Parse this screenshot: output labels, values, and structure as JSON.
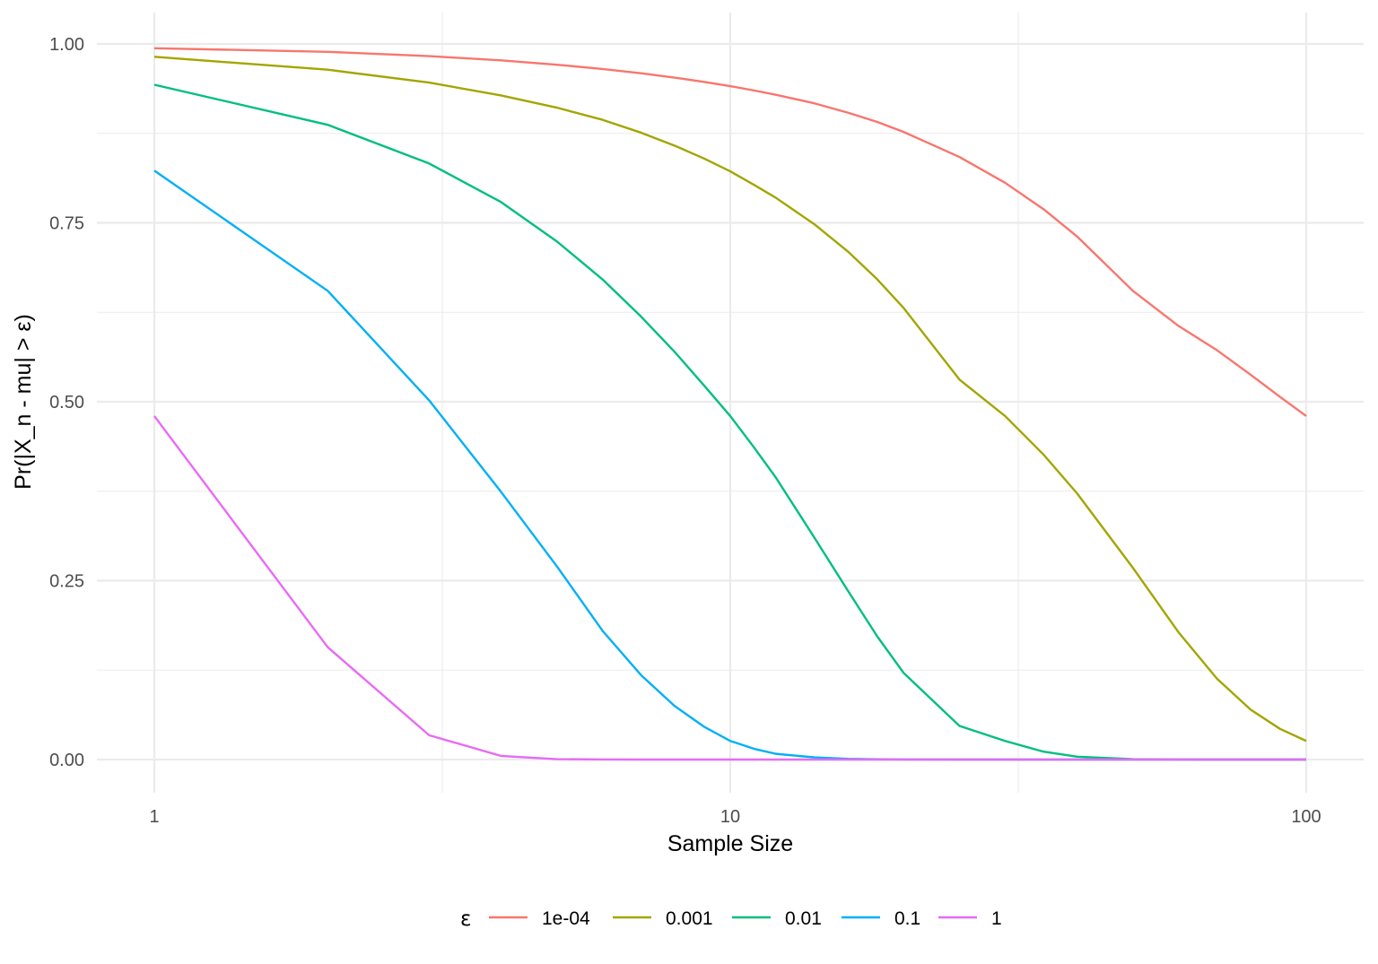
{
  "chart_data": {
    "type": "line",
    "title": "",
    "xlabel": "Sample Size",
    "ylabel": "Pr(|X_n - mu| > ε)",
    "x_scale": "log10",
    "xlim": [
      1,
      100
    ],
    "ylim": [
      0,
      1
    ],
    "x_ticks": [
      {
        "value": 1,
        "label": "1"
      },
      {
        "value": 10,
        "label": "10"
      },
      {
        "value": 100,
        "label": "100"
      }
    ],
    "y_ticks": [
      {
        "value": 0,
        "label": "0.00"
      },
      {
        "value": 0.25,
        "label": "0.25"
      },
      {
        "value": 0.5,
        "label": "0.50"
      },
      {
        "value": 0.75,
        "label": "0.75"
      },
      {
        "value": 1,
        "label": "1.00"
      }
    ],
    "grid": true,
    "legend": {
      "title": "ε",
      "position": "bottom"
    },
    "x": [
      1,
      2,
      3,
      4,
      5,
      6,
      7,
      8,
      9,
      10,
      11,
      12,
      14,
      16,
      18,
      20,
      25,
      30,
      35,
      40,
      50,
      60,
      70,
      80,
      90,
      100
    ],
    "series": [
      {
        "name": "1e-04",
        "color": "#F8766D",
        "values": [
          0.994,
          0.989,
          0.983,
          0.977,
          0.971,
          0.965,
          0.959,
          0.953,
          0.947,
          0.941,
          0.935,
          0.929,
          0.917,
          0.904,
          0.891,
          0.877,
          0.842,
          0.806,
          0.769,
          0.731,
          0.655,
          0.606,
          0.572,
          0.538,
          0.507,
          0.48
        ]
      },
      {
        "name": "0.001",
        "color": "#A3A500",
        "values": [
          0.982,
          0.964,
          0.946,
          0.928,
          0.911,
          0.894,
          0.876,
          0.858,
          0.84,
          0.822,
          0.803,
          0.785,
          0.748,
          0.71,
          0.671,
          0.631,
          0.531,
          0.48,
          0.426,
          0.372,
          0.268,
          0.178,
          0.113,
          0.07,
          0.043,
          0.026
        ]
      },
      {
        "name": "0.01",
        "color": "#00BF7D",
        "values": [
          0.943,
          0.887,
          0.833,
          0.779,
          0.724,
          0.671,
          0.619,
          0.57,
          0.523,
          0.48,
          0.436,
          0.394,
          0.31,
          0.236,
          0.172,
          0.121,
          0.047,
          0.026,
          0.011,
          0.004,
          0.0005,
          0.0001,
          0,
          0,
          0,
          0
        ]
      },
      {
        "name": "0.1",
        "color": "#00B0F6",
        "values": [
          0.823,
          0.655,
          0.502,
          0.374,
          0.27,
          0.18,
          0.118,
          0.075,
          0.046,
          0.026,
          0.015,
          0.008,
          0.003,
          0.001,
          0.0003,
          0.0001,
          0,
          0,
          0,
          0,
          0,
          0,
          0,
          0,
          0,
          0
        ]
      },
      {
        "name": "1",
        "color": "#E76BF3",
        "values": [
          0.48,
          0.157,
          0.034,
          0.005,
          0.0006,
          0.0001,
          0,
          0,
          0,
          0,
          0,
          0,
          0,
          0,
          0,
          0,
          0,
          0,
          0,
          0,
          0,
          0,
          0,
          0,
          0,
          0
        ]
      }
    ]
  }
}
